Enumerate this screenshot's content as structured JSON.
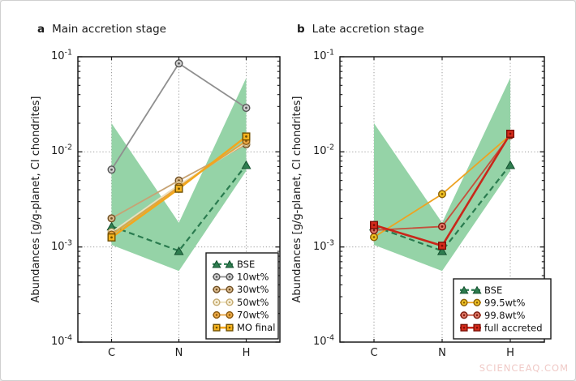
{
  "page": {
    "watermark": "SCIENCEAQ.COM"
  },
  "chart_data": [
    {
      "type": "line",
      "panel_label": "a",
      "title": "Main accretion stage",
      "categories": [
        "C",
        "N",
        "H"
      ],
      "xlabel": "",
      "ylabel": "Abundances [g/g-planet, CI chondrites]",
      "yscale": "log",
      "ylim": [
        0.0001,
        0.1
      ],
      "ytick_exponents": [
        -1,
        -2,
        -3,
        -4
      ],
      "grid": "dotted",
      "legend_position": "lower right",
      "band": {
        "name": "BSE range",
        "color": "#95d3a7",
        "upper": [
          0.02,
          0.0018,
          0.06
        ],
        "lower": [
          0.00105,
          0.00056,
          0.0063
        ]
      },
      "series": [
        {
          "name": "BSE",
          "values": [
            0.00165,
            0.00091,
            0.0073
          ],
          "marker": "triangle",
          "line": "dashed",
          "line_width": 2.2,
          "line_color": "#2a7b4f",
          "marker_fill": "#2e7d4f",
          "marker_edge": "#14502f"
        },
        {
          "name": "10wt%",
          "values": [
            0.0065,
            0.085,
            0.029
          ],
          "marker": "circle",
          "line": "solid",
          "line_width": 1.8,
          "line_color": "#8f8f8f",
          "marker_fill": "#d0d0d0",
          "marker_edge": "#555555"
        },
        {
          "name": "30wt%",
          "values": [
            0.002,
            0.005,
            0.012
          ],
          "marker": "circle",
          "line": "solid",
          "line_width": 1.8,
          "line_color": "#c7a374",
          "marker_fill": "#dab98c",
          "marker_edge": "#6f4f23"
        },
        {
          "name": "50wt%",
          "values": [
            0.00143,
            0.0045,
            0.0125
          ],
          "marker": "circle",
          "line": "solid",
          "line_width": 1.8,
          "line_color": "#ecdfbd",
          "marker_fill": "#f8f0d9",
          "marker_edge": "#c5ab72"
        },
        {
          "name": "70wt%",
          "values": [
            0.00135,
            0.0043,
            0.013
          ],
          "marker": "circle",
          "line": "solid",
          "line_width": 1.8,
          "line_color": "#e6a23e",
          "marker_fill": "#eeab45",
          "marker_edge": "#8a5a13"
        },
        {
          "name": "MO final",
          "values": [
            0.00126,
            0.0041,
            0.0145
          ],
          "marker": "square",
          "line": "solid",
          "line_width": 2.6,
          "line_color": "#f2a71e",
          "marker_fill": "#f6b31f",
          "marker_edge": "#6f4f00"
        }
      ]
    },
    {
      "type": "line",
      "panel_label": "b",
      "title": "Late accretion stage",
      "categories": [
        "C",
        "N",
        "H"
      ],
      "xlabel": "",
      "ylabel": "Abundances [g/g-planet, CI chondrites]",
      "yscale": "log",
      "ylim": [
        0.0001,
        0.1
      ],
      "ytick_exponents": [
        -1,
        -2,
        -3,
        -4
      ],
      "grid": "dotted",
      "legend_position": "lower right",
      "band": {
        "name": "BSE range",
        "color": "#95d3a7",
        "upper": [
          0.02,
          0.0018,
          0.06
        ],
        "lower": [
          0.00105,
          0.00056,
          0.0063
        ]
      },
      "series": [
        {
          "name": "BSE",
          "values": [
            0.00165,
            0.00091,
            0.0073
          ],
          "marker": "triangle",
          "line": "dashed",
          "line_width": 2.2,
          "line_color": "#2a7b4f",
          "marker_fill": "#2e7d4f",
          "marker_edge": "#14502f"
        },
        {
          "name": "99.5wt%",
          "values": [
            0.00127,
            0.0036,
            0.015
          ],
          "marker": "circle",
          "line": "solid",
          "line_width": 1.8,
          "line_color": "#eda322",
          "marker_fill": "#f0c325",
          "marker_edge": "#8a5e04"
        },
        {
          "name": "99.8wt%",
          "values": [
            0.0015,
            0.00164,
            0.015
          ],
          "marker": "circle",
          "line": "solid",
          "line_width": 1.8,
          "line_color": "#c5503c",
          "marker_fill": "#e27a68",
          "marker_edge": "#7c1a0e"
        },
        {
          "name": "full accreted",
          "values": [
            0.0017,
            0.00103,
            0.0155
          ],
          "marker": "square",
          "line": "solid",
          "line_width": 2.6,
          "line_color": "#c9271a",
          "marker_fill": "#d62b1b",
          "marker_edge": "#7a0f06"
        }
      ]
    }
  ]
}
